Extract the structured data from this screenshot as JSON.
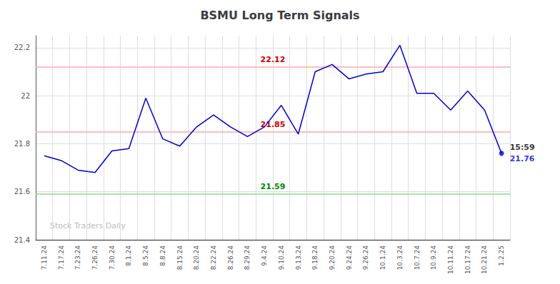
{
  "chart_data": {
    "type": "line",
    "title": "BSMU Long Term Signals",
    "categories": [
      "7.11.24",
      "7.17.24",
      "7.23.24",
      "7.26.24",
      "7.30.24",
      "8.1.24",
      "8.5.24",
      "8.8.24",
      "8.15.24",
      "8.20.24",
      "8.22.24",
      "8.26.24",
      "8.29.24",
      "9.4.24",
      "9.10.24",
      "9.13.24",
      "9.18.24",
      "9.20.24",
      "9.24.24",
      "9.26.24",
      "10.1.24",
      "10.3.24",
      "10.7.24",
      "10.9.24",
      "10.11.24",
      "10.17.24",
      "10.21.24",
      "1.2.25"
    ],
    "values": [
      21.75,
      21.73,
      21.69,
      21.68,
      21.77,
      21.78,
      21.99,
      21.82,
      21.79,
      21.87,
      21.92,
      21.87,
      21.83,
      21.87,
      21.96,
      21.84,
      22.1,
      22.13,
      22.07,
      22.09,
      22.1,
      22.21,
      22.01,
      22.01,
      21.94,
      22.02,
      21.94,
      21.76
    ],
    "color": "#0000cc",
    "last_point_color": "#0000dd",
    "ylim": [
      21.4,
      22.25
    ],
    "yticks": [
      21.4,
      21.6,
      21.8,
      22.0,
      22.2
    ],
    "grid": true,
    "hlines": [
      {
        "value": 22.12,
        "label": "22.12",
        "color": "#ffaaaa",
        "label_color": "#cc0000"
      },
      {
        "value": 21.85,
        "label": "21.85",
        "color": "#ffaaaa",
        "label_color": "#cc0000"
      },
      {
        "value": 21.59,
        "label": "21.59",
        "color": "#88dd88",
        "label_color": "#008800"
      }
    ],
    "annotations": [
      {
        "text": "15:59"
      },
      {
        "text": "21.76",
        "color": "#0000cc"
      }
    ],
    "watermark": "Stock Traders Daily"
  }
}
